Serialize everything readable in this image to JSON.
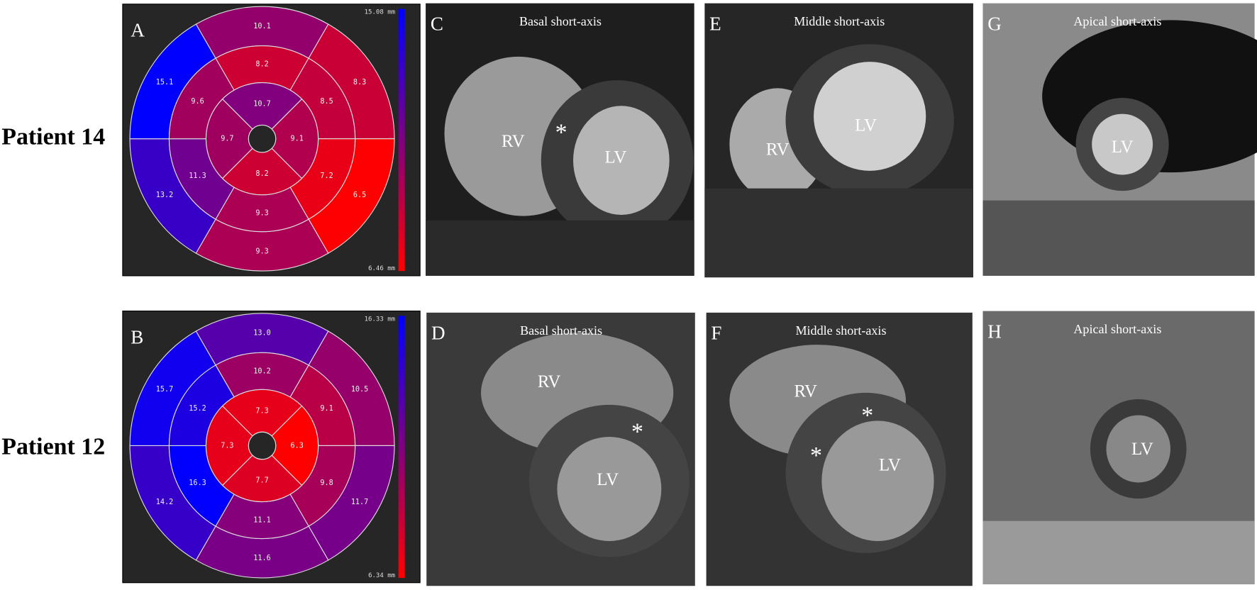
{
  "rows": [
    {
      "label": "Patient 14"
    },
    {
      "label": "Patient 12"
    }
  ],
  "bullseyes": [
    {
      "panel": "A",
      "max": "15.08 mm",
      "min": "6.46 mm",
      "basal": [
        "10.1",
        "8.3",
        "6.5",
        "9.3",
        "13.2",
        "15.1"
      ],
      "mid": [
        "8.2",
        "8.5",
        "7.2",
        "9.3",
        "11.3",
        "9.6"
      ],
      "apical": [
        "10.7",
        "9.1",
        "8.2",
        "9.7"
      ]
    },
    {
      "panel": "B",
      "max": "16.33 mm",
      "min": "6.34 mm",
      "basal": [
        "13.0",
        "10.5",
        "11.7",
        "11.6",
        "14.2",
        "15.7"
      ],
      "mid": [
        "10.2",
        "9.1",
        "9.8",
        "11.1",
        "16.3",
        "15.2"
      ],
      "apical": [
        "7.3",
        "6.3",
        "7.7",
        "7.3"
      ]
    }
  ],
  "images": [
    {
      "panel": "C",
      "title": "Basal short-axis",
      "labels": [
        "RV",
        "*",
        "LV"
      ]
    },
    {
      "panel": "E",
      "title": "Middle short-axis",
      "labels": [
        "RV",
        "LV"
      ]
    },
    {
      "panel": "G",
      "title": "Apical short-axis",
      "labels": [
        "LV"
      ]
    },
    {
      "panel": "D",
      "title": "Basal short-axis",
      "labels": [
        "RV",
        "*",
        "LV"
      ]
    },
    {
      "panel": "F",
      "title": "Middle short-axis",
      "labels": [
        "RV",
        "*",
        "*",
        "LV"
      ]
    },
    {
      "panel": "H",
      "title": "Apical short-axis",
      "labels": [
        "LV"
      ]
    }
  ]
}
